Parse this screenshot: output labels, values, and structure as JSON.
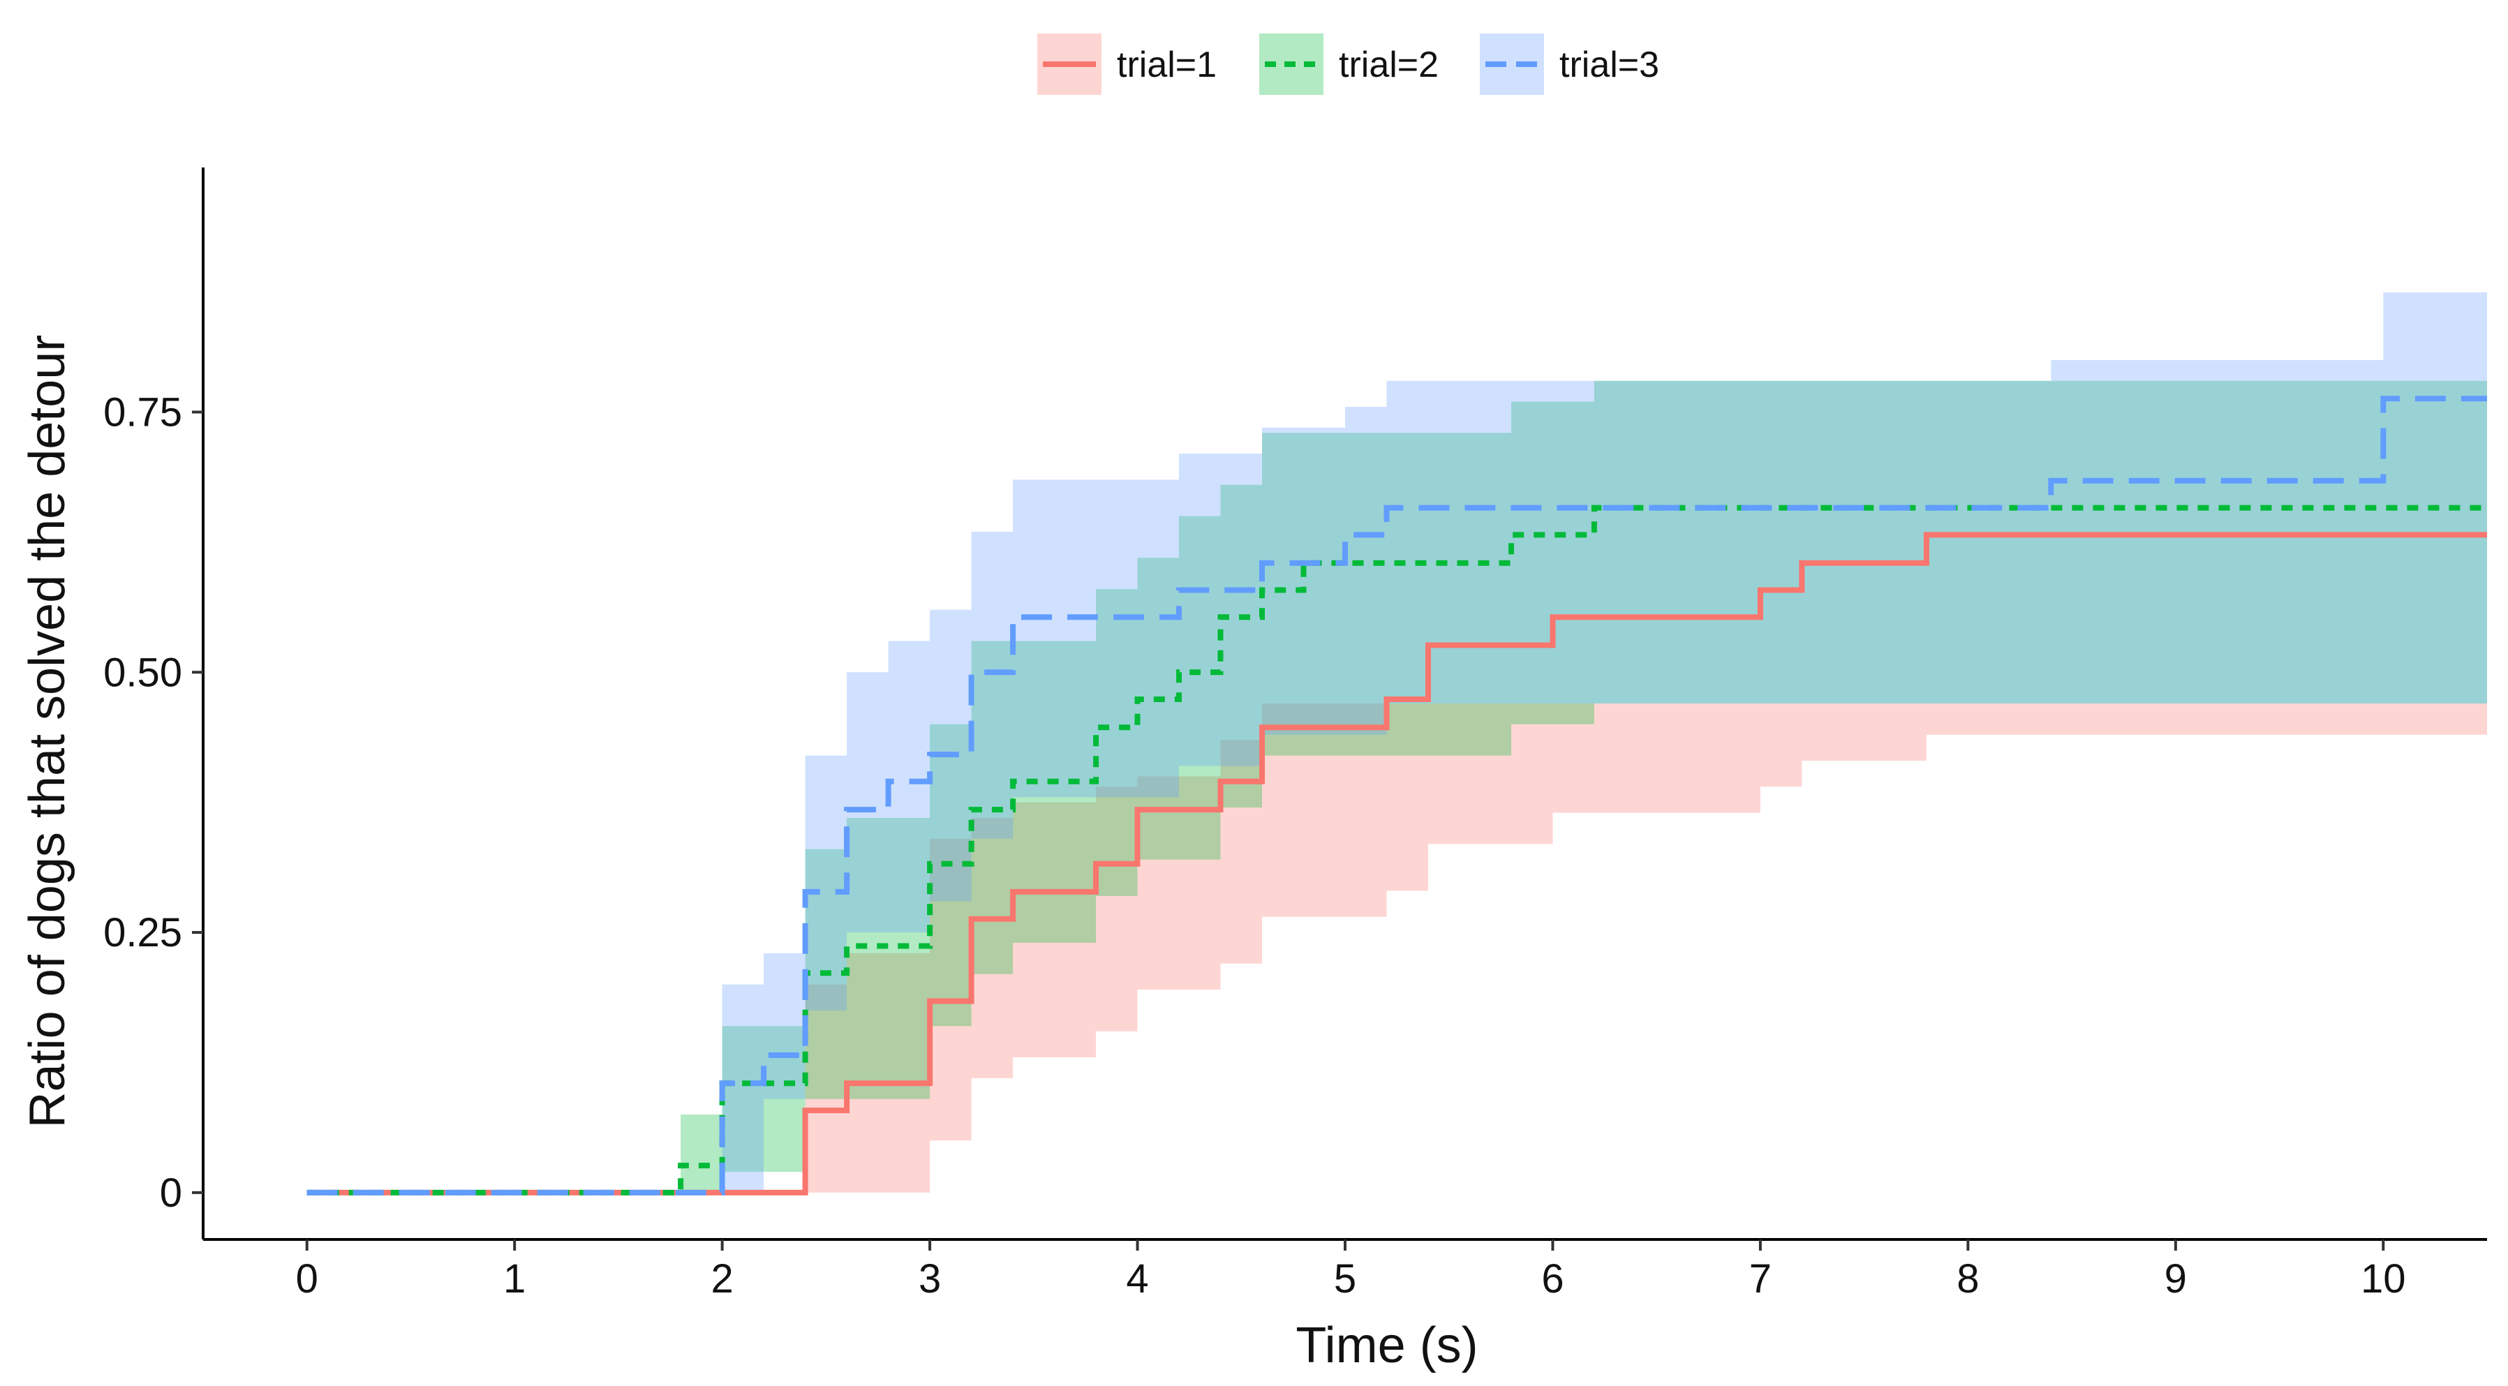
{
  "chart_data": {
    "type": "step",
    "title": "",
    "xlabel": "Time (s)",
    "ylabel": "Ratio of dogs that solved the detour",
    "xlim": [
      -0.5,
      10.5
    ],
    "ylim": [
      -0.045,
      0.985
    ],
    "x_ticks": [
      0,
      1,
      2,
      3,
      4,
      5,
      6,
      7,
      8,
      9,
      10
    ],
    "x_tick_labels": [
      "0",
      "1",
      "2",
      "3",
      "4",
      "5",
      "6",
      "7",
      "8",
      "9",
      "10"
    ],
    "y_ticks": [
      0,
      0.25,
      0.5,
      0.75
    ],
    "y_tick_labels": [
      "0",
      "0.25",
      "0.50",
      "0.75"
    ],
    "grid": false,
    "legend_position": "top",
    "series": [
      {
        "name": "trial=1",
        "color": "#F8766D",
        "line_style": "solid",
        "steps": [
          [
            0,
            0
          ],
          [
            2.4,
            0.079
          ],
          [
            2.6,
            0.105
          ],
          [
            3.0,
            0.184
          ],
          [
            3.2,
            0.263
          ],
          [
            3.4,
            0.289
          ],
          [
            3.8,
            0.316
          ],
          [
            4.0,
            0.368
          ],
          [
            4.4,
            0.395
          ],
          [
            4.6,
            0.447
          ],
          [
            5.2,
            0.474
          ],
          [
            5.4,
            0.526
          ],
          [
            6.0,
            0.553
          ],
          [
            7.0,
            0.579
          ],
          [
            7.2,
            0.605
          ],
          [
            7.8,
            0.632
          ],
          [
            10.5,
            0.632
          ]
        ],
        "lower": [
          [
            0,
            0
          ],
          [
            2.4,
            0.0
          ],
          [
            3.0,
            0.05
          ],
          [
            3.2,
            0.11
          ],
          [
            3.4,
            0.13
          ],
          [
            3.8,
            0.155
          ],
          [
            4.0,
            0.195
          ],
          [
            4.4,
            0.22
          ],
          [
            4.6,
            0.265
          ],
          [
            5.2,
            0.29
          ],
          [
            5.4,
            0.335
          ],
          [
            6.0,
            0.365
          ],
          [
            7.0,
            0.39
          ],
          [
            7.2,
            0.415
          ],
          [
            7.8,
            0.44
          ],
          [
            10.5,
            0.44
          ]
        ],
        "upper": [
          [
            0,
            0
          ],
          [
            2.4,
            0.2
          ],
          [
            2.6,
            0.23
          ],
          [
            3.0,
            0.34
          ],
          [
            3.2,
            0.36
          ],
          [
            3.4,
            0.375
          ],
          [
            3.8,
            0.39
          ],
          [
            4.0,
            0.4
          ],
          [
            4.4,
            0.435
          ],
          [
            4.6,
            0.47
          ],
          [
            5.2,
            0.47
          ],
          [
            6.0,
            0.47
          ],
          [
            10.5,
            0.47
          ]
        ]
      },
      {
        "name": "trial=2",
        "color": "#00BA38",
        "line_style": "dashed",
        "steps": [
          [
            0,
            0
          ],
          [
            1.8,
            0.026
          ],
          [
            2.0,
            0.105
          ],
          [
            2.4,
            0.211
          ],
          [
            2.6,
            0.237
          ],
          [
            3.0,
            0.316
          ],
          [
            3.2,
            0.368
          ],
          [
            3.4,
            0.395
          ],
          [
            3.8,
            0.447
          ],
          [
            4.0,
            0.474
          ],
          [
            4.2,
            0.5
          ],
          [
            4.4,
            0.553
          ],
          [
            4.6,
            0.579
          ],
          [
            4.8,
            0.605
          ],
          [
            5.8,
            0.632
          ],
          [
            6.2,
            0.658
          ],
          [
            10.5,
            0.658
          ]
        ],
        "lower": [
          [
            0,
            0
          ],
          [
            2.0,
            0.02
          ],
          [
            2.4,
            0.09
          ],
          [
            3.0,
            0.16
          ],
          [
            3.2,
            0.21
          ],
          [
            3.4,
            0.24
          ],
          [
            3.8,
            0.285
          ],
          [
            4.0,
            0.32
          ],
          [
            4.4,
            0.37
          ],
          [
            4.6,
            0.42
          ],
          [
            5.8,
            0.45
          ],
          [
            6.2,
            0.47
          ],
          [
            10.5,
            0.47
          ]
        ],
        "upper": [
          [
            0,
            0
          ],
          [
            1.8,
            0.075
          ],
          [
            2.0,
            0.16
          ],
          [
            2.4,
            0.33
          ],
          [
            2.6,
            0.36
          ],
          [
            3.0,
            0.45
          ],
          [
            3.2,
            0.53
          ],
          [
            3.4,
            0.53
          ],
          [
            3.8,
            0.58
          ],
          [
            4.0,
            0.61
          ],
          [
            4.2,
            0.65
          ],
          [
            4.4,
            0.68
          ],
          [
            4.6,
            0.73
          ],
          [
            5.8,
            0.76
          ],
          [
            6.2,
            0.78
          ],
          [
            10.5,
            0.78
          ]
        ]
      },
      {
        "name": "trial=3",
        "color": "#619CFF",
        "line_style": "longdash",
        "steps": [
          [
            0,
            0
          ],
          [
            2.0,
            0.105
          ],
          [
            2.2,
            0.132
          ],
          [
            2.4,
            0.289
          ],
          [
            2.6,
            0.368
          ],
          [
            2.8,
            0.395
          ],
          [
            3.0,
            0.421
          ],
          [
            3.2,
            0.5
          ],
          [
            3.4,
            0.553
          ],
          [
            4.2,
            0.579
          ],
          [
            4.6,
            0.605
          ],
          [
            5.0,
            0.632
          ],
          [
            5.2,
            0.658
          ],
          [
            8.4,
            0.684
          ],
          [
            10.0,
            0.763
          ],
          [
            10.5,
            0.763
          ]
        ],
        "lower": [
          [
            0,
            0
          ],
          [
            2.2,
            0.09
          ],
          [
            2.4,
            0.175
          ],
          [
            2.6,
            0.25
          ],
          [
            3.0,
            0.28
          ],
          [
            3.2,
            0.34
          ],
          [
            3.4,
            0.38
          ],
          [
            4.2,
            0.41
          ],
          [
            4.6,
            0.44
          ],
          [
            5.2,
            0.47
          ],
          [
            10.5,
            0.47
          ]
        ],
        "upper": [
          [
            0,
            0
          ],
          [
            2.0,
            0.2
          ],
          [
            2.2,
            0.23
          ],
          [
            2.4,
            0.42
          ],
          [
            2.6,
            0.5
          ],
          [
            2.8,
            0.53
          ],
          [
            3.0,
            0.56
          ],
          [
            3.2,
            0.635
          ],
          [
            3.4,
            0.685
          ],
          [
            4.2,
            0.71
          ],
          [
            4.6,
            0.735
          ],
          [
            5.0,
            0.755
          ],
          [
            5.2,
            0.78
          ],
          [
            8.4,
            0.8
          ],
          [
            10.0,
            0.865
          ],
          [
            10.5,
            0.865
          ]
        ]
      }
    ]
  }
}
